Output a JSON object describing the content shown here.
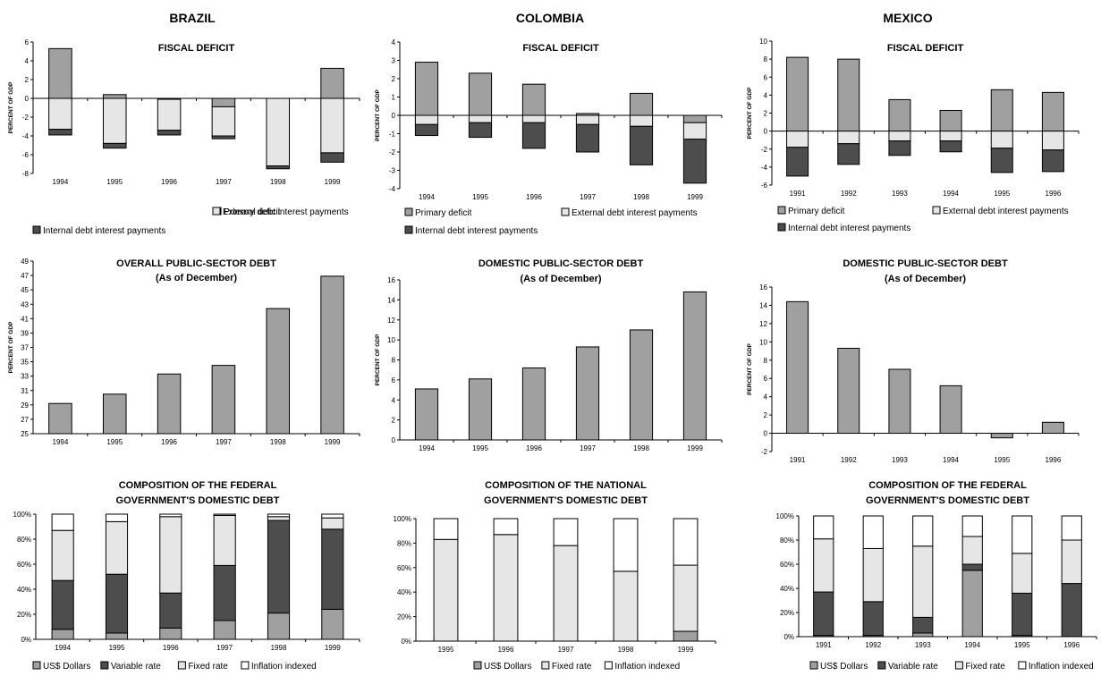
{
  "countries": [
    "BRAZIL",
    "COLOMBIA",
    "MEXICO"
  ],
  "colors": {
    "primary_deficit": "#a0a0a0",
    "external_interest": "#e6e6e6",
    "internal_interest": "#4d4d4d",
    "debt_bar": "#a0a0a0",
    "us_dollars": "#a0a0a0",
    "variable_rate": "#4d4d4d",
    "fixed_rate": "#e6e6e6",
    "inflation_indexed": "#ffffff"
  },
  "chart_data": [
    {
      "id": "br_fiscal",
      "country": "BRAZIL",
      "type": "bar",
      "stacked": true,
      "title": "FISCAL DEFICIT",
      "ylabel": "PERCENT OF GDP",
      "categories": [
        "1994",
        "1995",
        "1996",
        "1997",
        "1998",
        "1999"
      ],
      "ylim": [
        -8,
        6
      ],
      "yticks": [
        -8,
        -6,
        -4,
        -2,
        0,
        2,
        4,
        6
      ],
      "legend": "bottom",
      "series": [
        {
          "name": "Primary deficit",
          "color_key": "primary_deficit",
          "values": [
            5.3,
            0.4,
            -0.1,
            -0.9,
            0.0,
            3.2
          ]
        },
        {
          "name": "External debt interest payments",
          "color_key": "external_interest",
          "values": [
            -3.3,
            -4.8,
            -3.3,
            -3.1,
            -7.2,
            -5.8
          ]
        },
        {
          "name": "Internal debt interest payments",
          "color_key": "internal_interest",
          "values": [
            -0.6,
            -0.5,
            -0.5,
            -0.3,
            -0.3,
            -1.0
          ]
        }
      ]
    },
    {
      "id": "co_fiscal",
      "country": "COLOMBIA",
      "type": "bar",
      "stacked": true,
      "title": "FISCAL DEFICIT",
      "ylabel": "PERCENT OF GDP",
      "categories": [
        "1994",
        "1995",
        "1996",
        "1997",
        "1998",
        "1999"
      ],
      "ylim": [
        -4,
        4
      ],
      "yticks": [
        -4,
        -3,
        -2,
        -1,
        0,
        1,
        2,
        3,
        4
      ],
      "legend": "bottom",
      "series": [
        {
          "name": "Primary deficit",
          "color_key": "primary_deficit",
          "values": [
            2.9,
            2.3,
            1.7,
            0.1,
            1.2,
            -0.4
          ]
        },
        {
          "name": "External debt interest payments",
          "color_key": "external_interest",
          "values": [
            -0.5,
            -0.4,
            -0.4,
            -0.5,
            -0.6,
            -0.9
          ]
        },
        {
          "name": "Internal debt interest payments",
          "color_key": "internal_interest",
          "values": [
            -0.6,
            -0.8,
            -1.4,
            -1.5,
            -2.1,
            -2.4
          ]
        }
      ]
    },
    {
      "id": "mx_fiscal",
      "country": "MEXICO",
      "type": "bar",
      "stacked": true,
      "title": "FISCAL DEFICIT",
      "ylabel": "PERCENT OF GDP",
      "categories": [
        "1991",
        "1992",
        "1993",
        "1994",
        "1995",
        "1996"
      ],
      "ylim": [
        -6,
        10
      ],
      "yticks": [
        -6,
        -4,
        -2,
        0,
        2,
        4,
        6,
        8,
        10
      ],
      "legend": "bottom",
      "series": [
        {
          "name": "Primary deficit",
          "color_key": "primary_deficit",
          "values": [
            8.2,
            8.0,
            3.5,
            2.3,
            4.6,
            4.3
          ]
        },
        {
          "name": "External debt interest payments",
          "color_key": "external_interest",
          "values": [
            -1.8,
            -1.4,
            -1.1,
            -1.1,
            -1.9,
            -2.1
          ]
        },
        {
          "name": "Internal debt interest payments",
          "color_key": "internal_interest",
          "values": [
            -3.2,
            -2.3,
            -1.6,
            -1.2,
            -2.7,
            -2.4
          ]
        }
      ]
    },
    {
      "id": "br_debt",
      "country": "BRAZIL",
      "type": "bar",
      "title": "OVERALL PUBLIC-SECTOR DEBT",
      "subtitle": "(As of December)",
      "ylabel": "PERCENT OF GDP",
      "categories": [
        "1994",
        "1995",
        "1996",
        "1997",
        "1998",
        "1999"
      ],
      "ylim": [
        25,
        49
      ],
      "yticks": [
        25,
        27,
        29,
        31,
        33,
        35,
        37,
        39,
        41,
        43,
        45,
        47,
        49
      ],
      "values": [
        29.2,
        30.5,
        33.3,
        34.5,
        42.4,
        46.9
      ]
    },
    {
      "id": "co_debt",
      "country": "COLOMBIA",
      "type": "bar",
      "title": "DOMESTIC PUBLIC-SECTOR DEBT",
      "subtitle": "(As of December)",
      "ylabel": "PERCENT OF GDP",
      "categories": [
        "1994",
        "1995",
        "1996",
        "1997",
        "1998",
        "1999"
      ],
      "ylim": [
        0,
        16
      ],
      "yticks": [
        0,
        2,
        4,
        6,
        8,
        10,
        12,
        14,
        16
      ],
      "values": [
        5.1,
        6.1,
        7.2,
        9.3,
        11.0,
        14.8
      ]
    },
    {
      "id": "mx_debt",
      "country": "MEXICO",
      "type": "bar",
      "title": "DOMESTIC PUBLIC-SECTOR DEBT",
      "subtitle": "(As of December)",
      "ylabel": "PERCENT OF GDP",
      "categories": [
        "1991",
        "1992",
        "1993",
        "1994",
        "1995",
        "1996"
      ],
      "ylim": [
        -2,
        16
      ],
      "yticks": [
        -2,
        0,
        2,
        4,
        6,
        8,
        10,
        12,
        14,
        16
      ],
      "values": [
        14.4,
        9.3,
        7.0,
        5.2,
        -0.5,
        1.2
      ]
    },
    {
      "id": "br_comp",
      "country": "BRAZIL",
      "type": "bar",
      "stacked": true,
      "percent": true,
      "title": "COMPOSITION OF THE FEDERAL",
      "subtitle": "GOVERNMENT'S DOMESTIC DEBT",
      "categories": [
        "1994",
        "1995",
        "1996",
        "1997",
        "1998",
        "1999"
      ],
      "ylim": [
        0,
        100
      ],
      "yticks": [
        0,
        20,
        40,
        60,
        80,
        100
      ],
      "legend": "bottom",
      "series": [
        {
          "name": "US$ Dollars",
          "color_key": "us_dollars",
          "values": [
            8,
            5,
            9,
            15,
            21,
            24
          ]
        },
        {
          "name": "Variable rate",
          "color_key": "variable_rate",
          "values": [
            39,
            47,
            28,
            44,
            74,
            64
          ]
        },
        {
          "name": "Fixed rate",
          "color_key": "fixed_rate",
          "values": [
            40,
            42,
            61,
            40,
            3,
            9
          ]
        },
        {
          "name": "Inflation indexed",
          "color_key": "inflation_indexed",
          "values": [
            13,
            6,
            2,
            1,
            2,
            3
          ]
        }
      ]
    },
    {
      "id": "co_comp",
      "country": "COLOMBIA",
      "type": "bar",
      "stacked": true,
      "percent": true,
      "title": "COMPOSITION OF THE NATIONAL",
      "subtitle": "GOVERNMENT'S DOMESTIC DEBT",
      "categories": [
        "1995",
        "1996",
        "1997",
        "1998",
        "1999"
      ],
      "ylim": [
        0,
        100
      ],
      "yticks": [
        0,
        20,
        40,
        60,
        80,
        100
      ],
      "legend": "bottom",
      "series": [
        {
          "name": "US$ Dollars",
          "color_key": "us_dollars",
          "values": [
            0,
            0,
            0,
            0,
            8
          ]
        },
        {
          "name": "Fixed rate",
          "color_key": "fixed_rate",
          "values": [
            83,
            87,
            78,
            57,
            54
          ]
        },
        {
          "name": "Inflation indexed",
          "color_key": "inflation_indexed",
          "values": [
            17,
            13,
            22,
            43,
            38
          ]
        }
      ]
    },
    {
      "id": "mx_comp",
      "country": "MEXICO",
      "type": "bar",
      "stacked": true,
      "percent": true,
      "title": "COMPOSITION OF THE FEDERAL",
      "subtitle": "GOVERNMENT'S DOMESTIC DEBT",
      "categories": [
        "1991",
        "1992",
        "1993",
        "1994",
        "1995",
        "1996"
      ],
      "ylim": [
        0,
        100
      ],
      "yticks": [
        0,
        20,
        40,
        60,
        80,
        100
      ],
      "legend": "bottom",
      "series": [
        {
          "name": "US$ Dollars",
          "color_key": "us_dollars",
          "values": [
            1,
            1,
            3,
            55,
            1,
            0
          ]
        },
        {
          "name": "Variable rate",
          "color_key": "variable_rate",
          "values": [
            36,
            28,
            13,
            5,
            35,
            44
          ]
        },
        {
          "name": "Fixed rate",
          "color_key": "fixed_rate",
          "values": [
            44,
            44,
            59,
            23,
            33,
            36
          ]
        },
        {
          "name": "Inflation indexed",
          "color_key": "inflation_indexed",
          "values": [
            19,
            27,
            25,
            17,
            31,
            20
          ]
        }
      ]
    }
  ]
}
